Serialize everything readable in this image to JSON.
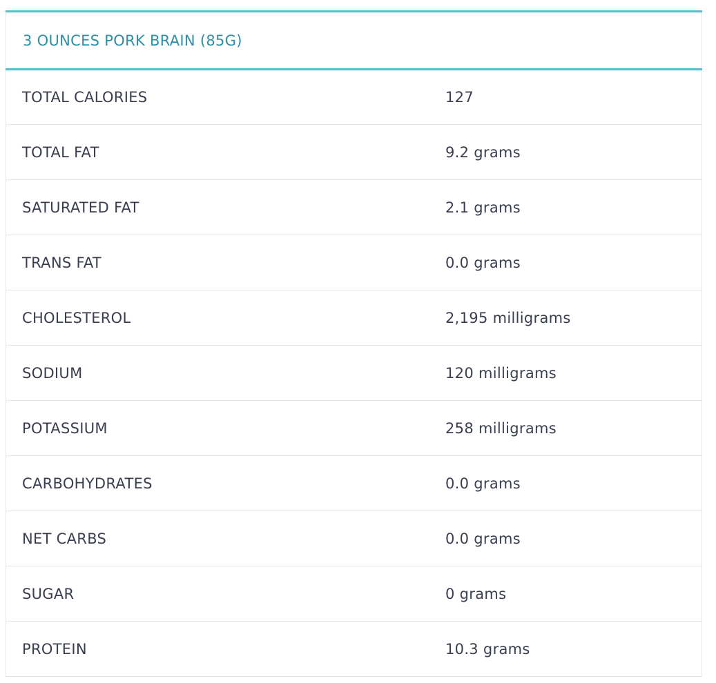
{
  "table": {
    "header": "3 OUNCES PORK BRAIN (85G)",
    "rows": [
      {
        "label": "TOTAL CALORIES",
        "value": "127"
      },
      {
        "label": "TOTAL FAT",
        "value": "9.2 grams"
      },
      {
        "label": "SATURATED FAT",
        "value": "2.1 grams"
      },
      {
        "label": "TRANS FAT",
        "value": "0.0 grams"
      },
      {
        "label": "CHOLESTEROL",
        "value": "2,195 milligrams"
      },
      {
        "label": "SODIUM",
        "value": "120 milligrams"
      },
      {
        "label": "POTASSIUM",
        "value": "258 milligrams"
      },
      {
        "label": "CARBOHYDRATES",
        "value": "0.0 grams"
      },
      {
        "label": "NET CARBS",
        "value": "0.0 grams"
      },
      {
        "label": "SUGAR",
        "value": "0 grams"
      },
      {
        "label": "PROTEIN",
        "value": "10.3 grams"
      }
    ]
  },
  "colors": {
    "accent": "#4ebfd6",
    "header_text": "#2b8fa7",
    "body_text": "#3a3f4f",
    "divider": "#e6e6e6"
  }
}
